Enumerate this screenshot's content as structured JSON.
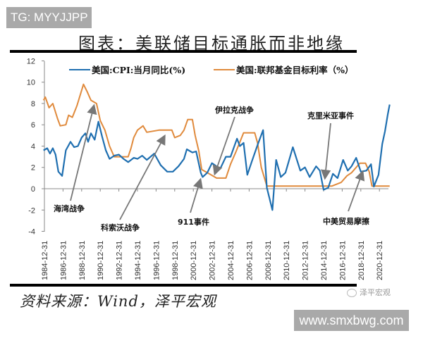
{
  "watermark_top": "TG: MYYJJPP",
  "watermark_bottom": "www.smxbwg.com",
  "header": {
    "title": "图表：美联储目标通胀而非地缘"
  },
  "footer": {
    "source": "资料来源：Wind，泽平宏观",
    "brand": "泽平宏观"
  },
  "colors": {
    "cpi": "#1f6fb0",
    "fed": "#e08a3c",
    "arrow": "#777777",
    "axis": "#888888"
  },
  "chart_data": {
    "type": "line",
    "title": "图表：美联储目标通胀而非地缘",
    "xlabel": "",
    "ylabel": "",
    "ylim": [
      -4,
      12
    ],
    "yticks": [
      12,
      10,
      8,
      6,
      4,
      2,
      0,
      -2,
      -4
    ],
    "xticks": [
      "1984-12-31",
      "1986-12-31",
      "1988-12-31",
      "1990-12-31",
      "1992-12-31",
      "1994-12-31",
      "1996-12-31",
      "1998-12-31",
      "2000-12-31",
      "2002-12-31",
      "2004-12-31",
      "2006-12-31",
      "2008-12-31",
      "2010-12-31",
      "2012-12-31",
      "2014-12-31",
      "2016-12-31",
      "2018-12-31",
      "2020-12-31"
    ],
    "grid": false,
    "legend_position": "top",
    "series": [
      {
        "name": "美国:CPI:当月同比(%)",
        "color": "#1f6fb0",
        "x": [
          1984.9,
          1985.3,
          1985.6,
          1985.9,
          1986.2,
          1986.5,
          1986.9,
          1987.3,
          1987.8,
          1988.2,
          1988.6,
          1989.0,
          1989.4,
          1989.7,
          1990.0,
          1990.4,
          1990.8,
          1991.2,
          1991.6,
          1992.0,
          1992.5,
          1993.0,
          1993.5,
          1994.0,
          1994.6,
          1995.0,
          1995.5,
          1996.0,
          1996.8,
          1997.5,
          1998.2,
          1998.8,
          1999.4,
          2000.0,
          2000.3,
          2000.9,
          2001.3,
          2001.8,
          2002.0,
          2002.5,
          2003.0,
          2003.5,
          2003.9,
          2004.5,
          2005.0,
          2005.7,
          2006.0,
          2006.4,
          2006.8,
          2007.3,
          2007.9,
          2008.5,
          2008.9,
          2009.5,
          2009.9,
          2010.4,
          2010.9,
          2011.7,
          2012.5,
          2013.0,
          2013.5,
          2014.2,
          2014.6,
          2015.0,
          2015.5,
          2016.0,
          2016.5,
          2017.1,
          2017.6,
          2018.0,
          2018.5,
          2019.0,
          2019.6,
          2020.1,
          2020.4,
          2020.9,
          2021.3,
          2021.6,
          2021.9,
          2022.1
        ],
        "values": [
          3.6,
          3.8,
          3.3,
          3.8,
          3.2,
          1.6,
          1.2,
          3.6,
          4.4,
          3.9,
          4.0,
          4.8,
          5.2,
          4.4,
          5.2,
          4.6,
          6.3,
          4.9,
          3.6,
          2.8,
          3.1,
          3.2,
          2.8,
          2.5,
          2.9,
          2.8,
          3.1,
          2.7,
          3.3,
          2.2,
          1.6,
          1.6,
          2.1,
          2.8,
          3.7,
          3.4,
          3.5,
          1.5,
          1.1,
          1.5,
          2.4,
          2.1,
          1.9,
          3.0,
          3.0,
          4.7,
          4.0,
          4.3,
          1.3,
          2.6,
          4.1,
          5.5,
          0.1,
          -2.0,
          2.7,
          1.1,
          1.5,
          3.9,
          1.7,
          2.0,
          1.1,
          2.1,
          1.7,
          -0.1,
          0.1,
          1.4,
          1.0,
          2.7,
          1.7,
          2.1,
          2.9,
          1.6,
          1.7,
          2.3,
          0.2,
          1.3,
          4.2,
          5.4,
          7.0,
          7.9
        ]
      },
      {
        "name": "美国:联邦基金目标利率（%）",
        "color": "#e08a3c",
        "x": [
          1984.9,
          1985.1,
          1985.5,
          1985.9,
          1986.4,
          1986.7,
          1987.3,
          1987.6,
          1988.0,
          1988.5,
          1989.2,
          1989.6,
          1990.0,
          1990.6,
          1991.0,
          1991.5,
          1992.0,
          1992.5,
          1993.0,
          1994.0,
          1994.3,
          1994.6,
          1995.0,
          1995.6,
          1996.0,
          1997.3,
          1998.7,
          1999.0,
          1999.6,
          2000.0,
          2000.4,
          2000.9,
          2001.2,
          2001.6,
          2001.9,
          2002.9,
          2003.5,
          2004.5,
          2005.0,
          2005.6,
          2006.4,
          2007.6,
          2007.9,
          2008.3,
          2008.9,
          2015.9,
          2016.9,
          2017.5,
          2018.0,
          2018.9,
          2019.5,
          2019.9,
          2020.2,
          2022.1
        ],
        "values": [
          8.3,
          8.6,
          7.6,
          8.0,
          6.6,
          5.9,
          6.0,
          6.9,
          6.7,
          7.8,
          9.8,
          9.1,
          8.3,
          8.0,
          6.4,
          5.5,
          4.0,
          3.0,
          3.0,
          3.0,
          3.8,
          4.8,
          5.5,
          5.9,
          5.3,
          5.5,
          5.5,
          4.8,
          5.0,
          5.5,
          6.5,
          6.5,
          5.0,
          3.5,
          1.8,
          1.3,
          1.0,
          1.0,
          2.3,
          3.5,
          5.25,
          5.25,
          4.3,
          2.0,
          0.25,
          0.25,
          0.6,
          1.2,
          1.5,
          2.4,
          2.4,
          1.6,
          0.25,
          0.25
        ]
      }
    ],
    "annotations": [
      {
        "label": "海湾战争",
        "year": 1990.5,
        "value": 8.0
      },
      {
        "label": "科索沃战争",
        "year": 1999.0,
        "value": 6.5
      },
      {
        "label": "911事件",
        "year": 2001.7,
        "value": 1.0
      },
      {
        "label": "伊拉克战争",
        "year": 2003.0,
        "value": 1.3
      },
      {
        "label": "克里米亚事件",
        "year": 2014.1,
        "value": -0.1
      },
      {
        "label": "中美贸易摩擦",
        "year": 2018.5,
        "value": 1.6
      }
    ]
  }
}
